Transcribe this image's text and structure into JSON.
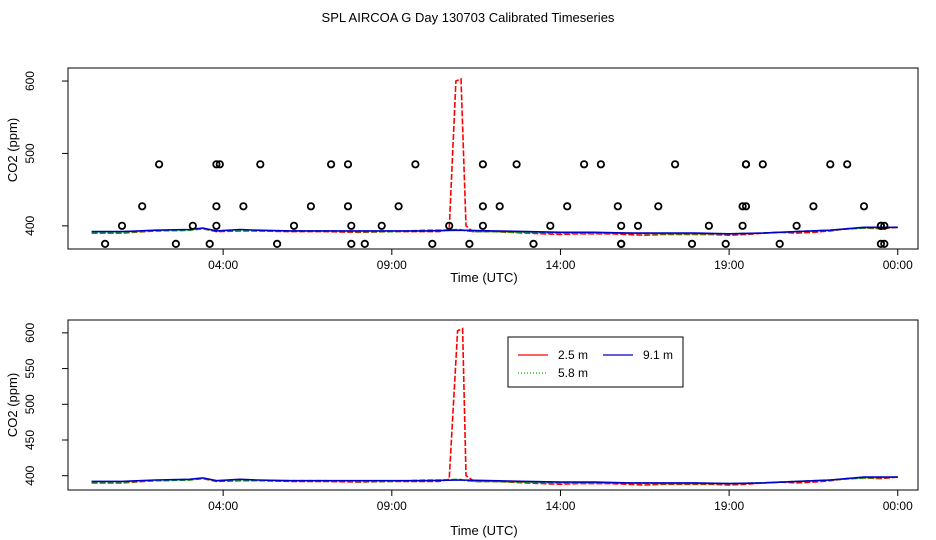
{
  "title": "SPL AIRCOA G  Day 130703  Calibrated Timeseries",
  "colors": {
    "2.5 m": "#ff0000",
    "5.8 m": "#00aa00",
    "9.1 m": "#0000cc",
    "markers": "#000000"
  },
  "chart_data": [
    {
      "type": "line",
      "title": "SPL AIRCOA G  Day 130703  Calibrated Timeseries",
      "xlabel": "Time (UTC)",
      "ylabel": "CO2 (ppm)",
      "x_unit": "hours UTC",
      "xlim": [
        -0.6,
        24.6
      ],
      "ylim": [
        368,
        618
      ],
      "x_ticks": [
        4,
        9,
        14,
        19,
        24
      ],
      "x_tick_labels": [
        "04:00",
        "09:00",
        "14:00",
        "19:00",
        "00:00"
      ],
      "y_ticks": [
        400,
        500,
        600
      ],
      "y_tick_labels": [
        "400",
        "500",
        "600"
      ],
      "grid": false,
      "legend": null,
      "series": [
        {
          "name": "2.5 m",
          "color": "#ff0000",
          "dashed": true,
          "x": [
            0.1,
            1,
            2,
            3,
            3.4,
            3.8,
            4.5,
            5,
            6,
            7,
            8,
            9,
            10,
            10.4,
            10.7,
            10.9,
            11.05,
            11.2,
            11.4,
            11.6,
            12,
            12.5,
            13,
            13.5,
            14,
            14.5,
            15,
            15.5,
            16,
            16.5,
            17,
            17.5,
            18,
            18.5,
            19,
            19.5,
            20,
            20.5,
            21,
            21.5,
            22,
            22.5,
            23,
            23.5,
            24
          ],
          "y": [
            390,
            390,
            393,
            394,
            396,
            392,
            393,
            393,
            392,
            392,
            391,
            392,
            392,
            392,
            395,
            600,
            603,
            400,
            392,
            392,
            392,
            391,
            390,
            389,
            388,
            389,
            389,
            389,
            388,
            387,
            388,
            388,
            388,
            388,
            387,
            388,
            390,
            391,
            390,
            391,
            393,
            396,
            397,
            396,
            398
          ]
        },
        {
          "name": "5.8 m",
          "color": "#00aa00",
          "dashed": true,
          "x": [
            0.1,
            1,
            2,
            3,
            3.4,
            3.8,
            4.5,
            5,
            6,
            7,
            8,
            9,
            10,
            10.5,
            11,
            11.2,
            11.5,
            12,
            13,
            14,
            15,
            16,
            17,
            18,
            19,
            20,
            21,
            22,
            23,
            24
          ],
          "y": [
            391,
            391,
            393,
            394,
            396,
            393,
            394,
            393,
            393,
            393,
            392,
            392,
            394,
            394,
            395,
            393,
            392,
            392,
            391,
            390,
            390,
            390,
            389,
            389,
            389,
            390,
            392,
            394,
            397,
            398
          ]
        },
        {
          "name": "9.1 m",
          "color": "#0000cc",
          "dashed": false,
          "x": [
            0.1,
            1,
            2,
            3,
            3.4,
            3.8,
            4.5,
            5,
            6,
            7,
            8,
            9,
            10,
            11,
            12,
            13,
            14,
            15,
            16,
            17,
            18,
            19,
            20,
            21,
            22,
            23,
            24
          ],
          "y": [
            392,
            392,
            394,
            395,
            397,
            393,
            395,
            394,
            393,
            393,
            393,
            393,
            393,
            394,
            393,
            392,
            391,
            391,
            390,
            390,
            390,
            389,
            390,
            392,
            394,
            398,
            398
          ]
        }
      ],
      "markers": {
        "type": "scatter",
        "symbol": "open-circle",
        "color": "#000000",
        "x": [
          0.5,
          1.0,
          1.6,
          2.1,
          2.6,
          3.1,
          3.6,
          3.8,
          3.8,
          3.8,
          3.9,
          4.6,
          5.1,
          5.6,
          6.1,
          6.6,
          7.2,
          7.7,
          7.7,
          7.8,
          7.8,
          8.2,
          8.7,
          9.2,
          9.7,
          10.2,
          10.7,
          11.3,
          11.7,
          11.7,
          11.7,
          12.2,
          12.7,
          13.2,
          13.7,
          14.2,
          14.7,
          15.2,
          15.7,
          15.8,
          15.8,
          15.8,
          16.3,
          16.9,
          17.4,
          17.9,
          18.4,
          18.9,
          19.4,
          19.4,
          19.5,
          19.5,
          19.5,
          20.0,
          20.5,
          21.0,
          21.5,
          22.0,
          22.5,
          23.0,
          23.5,
          23.5,
          23.5,
          23.6,
          23.6
        ],
        "y": [
          375,
          400,
          427,
          485,
          375,
          400,
          375,
          400,
          427,
          485,
          485,
          427,
          485,
          375,
          400,
          427,
          485,
          485,
          427,
          400,
          375,
          375,
          400,
          427,
          485,
          375,
          400,
          375,
          427,
          485,
          400,
          427,
          485,
          375,
          400,
          427,
          485,
          485,
          427,
          400,
          375,
          375,
          400,
          427,
          485,
          375,
          400,
          375,
          400,
          427,
          485,
          485,
          427,
          485,
          375,
          400,
          427,
          485,
          485,
          427,
          400,
          375,
          400,
          375,
          400
        ]
      }
    },
    {
      "type": "line",
      "xlabel": "Time (UTC)",
      "ylabel": "CO2 (ppm)",
      "x_unit": "hours UTC",
      "xlim": [
        -0.6,
        24.6
      ],
      "ylim": [
        380,
        618
      ],
      "x_ticks": [
        4,
        9,
        14,
        19,
        24
      ],
      "x_tick_labels": [
        "04:00",
        "09:00",
        "14:00",
        "19:00",
        "00:00"
      ],
      "y_ticks": [
        400,
        450,
        500,
        550,
        600
      ],
      "y_tick_labels": [
        "400",
        "450",
        "500",
        "550",
        "600"
      ],
      "grid": false,
      "legend": "top-center",
      "series": [
        {
          "name": "2.5 m",
          "color": "#ff0000",
          "dashed": true,
          "x": [
            0.1,
            1,
            2,
            3,
            3.4,
            3.8,
            4.5,
            5,
            6,
            7,
            8,
            9,
            10,
            10.4,
            10.7,
            10.95,
            11.1,
            11.2,
            11.45,
            11.6,
            12,
            12.5,
            13,
            13.5,
            14,
            14.5,
            15,
            15.5,
            16,
            16.5,
            17,
            17.5,
            18,
            18.5,
            19,
            19.5,
            20,
            20.5,
            21,
            21.5,
            22,
            22.5,
            23,
            23.5,
            24
          ],
          "y": [
            390,
            390,
            393,
            394,
            396,
            392,
            393,
            393,
            392,
            392,
            391,
            392,
            392,
            392,
            395,
            603,
            606,
            400,
            392,
            392,
            392,
            391,
            390,
            389,
            388,
            389,
            389,
            389,
            388,
            387,
            388,
            388,
            388,
            388,
            387,
            388,
            390,
            391,
            390,
            391,
            393,
            396,
            397,
            396,
            398
          ]
        },
        {
          "name": "5.8 m",
          "color": "#00aa00",
          "dashed": true,
          "x": [
            0.1,
            1,
            2,
            3,
            3.4,
            3.8,
            4.5,
            5,
            6,
            7,
            8,
            9,
            10,
            10.5,
            11,
            11.2,
            11.5,
            12,
            13,
            14,
            15,
            16,
            17,
            18,
            19,
            20,
            21,
            22,
            23,
            24
          ],
          "y": [
            391,
            391,
            393,
            394,
            396,
            393,
            394,
            393,
            393,
            393,
            392,
            392,
            394,
            394,
            395,
            393,
            392,
            392,
            391,
            390,
            390,
            390,
            389,
            389,
            389,
            390,
            392,
            394,
            397,
            398
          ]
        },
        {
          "name": "9.1 m",
          "color": "#0000cc",
          "dashed": false,
          "x": [
            0.1,
            1,
            2,
            3,
            3.4,
            3.8,
            4.5,
            5,
            6,
            7,
            8,
            9,
            10,
            11,
            12,
            13,
            14,
            15,
            16,
            17,
            18,
            19,
            20,
            21,
            22,
            23,
            24
          ],
          "y": [
            392,
            392,
            394,
            395,
            397,
            393,
            395,
            394,
            393,
            393,
            393,
            393,
            393,
            394,
            393,
            392,
            391,
            391,
            390,
            390,
            390,
            389,
            390,
            392,
            394,
            398,
            398
          ]
        }
      ]
    }
  ]
}
